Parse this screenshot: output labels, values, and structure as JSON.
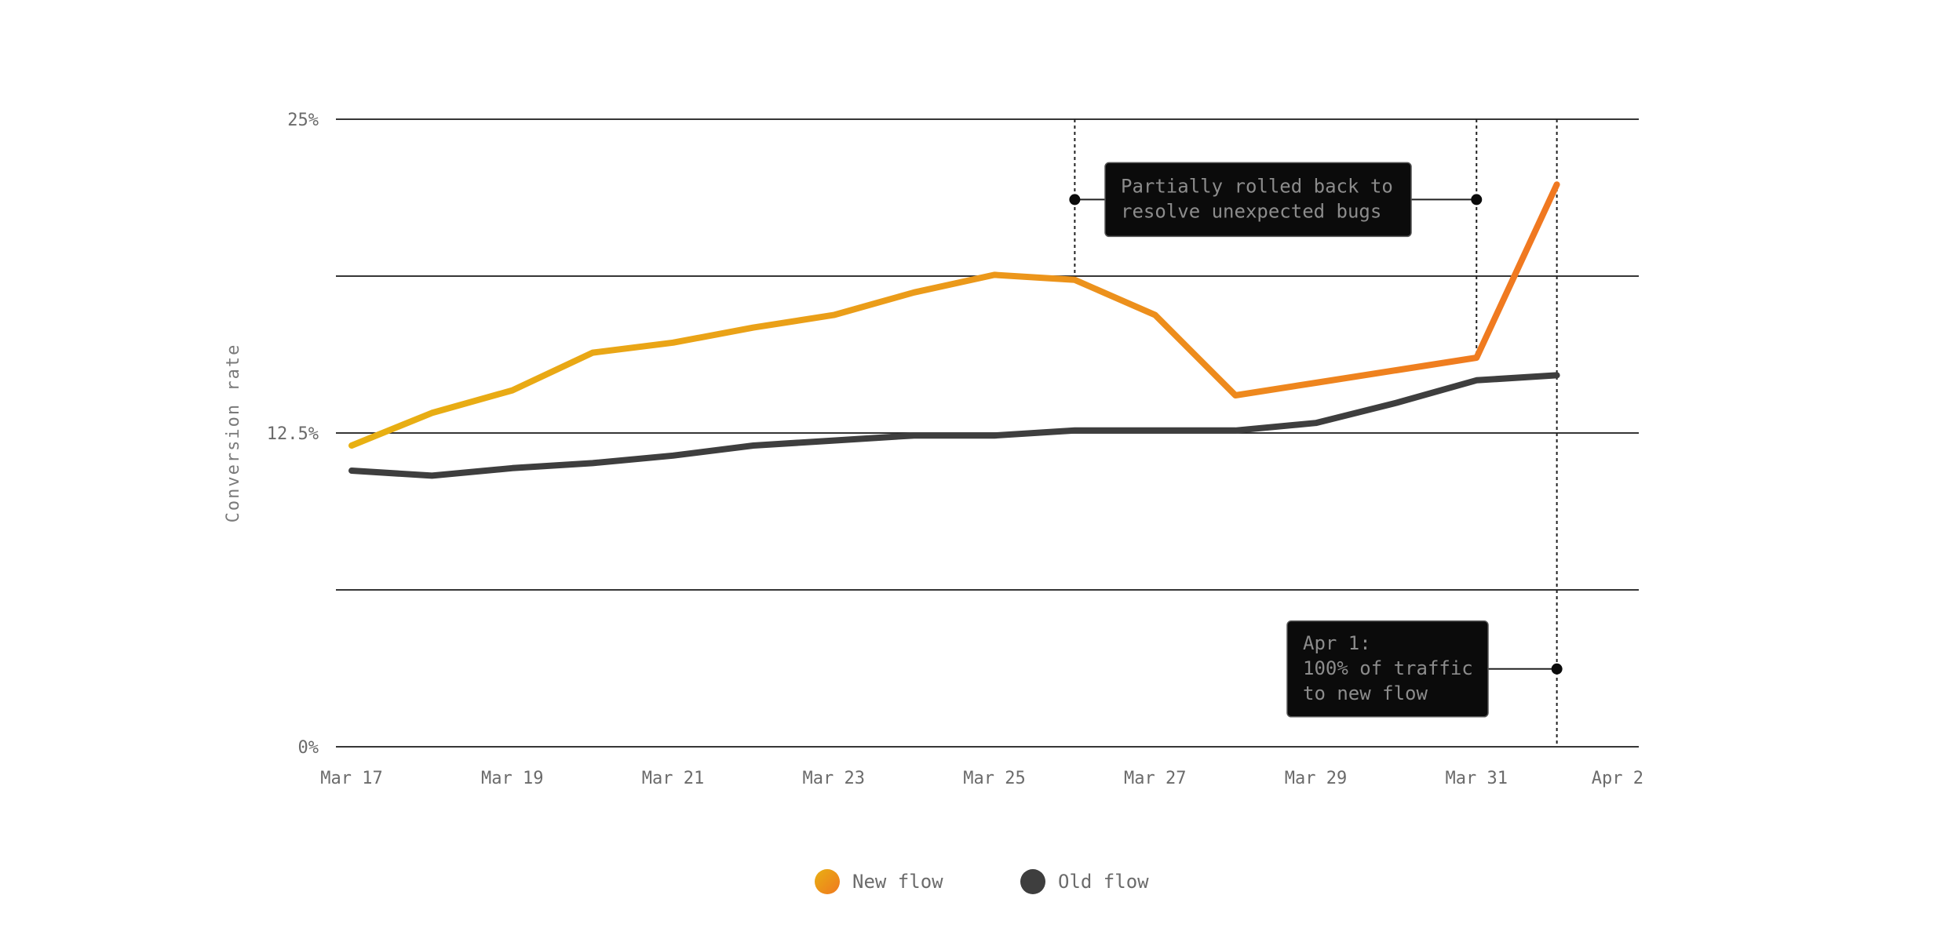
{
  "chart_data": {
    "type": "line",
    "ylabel": "Conversion rate",
    "xlabel": "",
    "ylim": [
      0,
      25
    ],
    "y_ticks": [
      {
        "value": 0,
        "label": "0%"
      },
      {
        "value": 6.25,
        "label": ""
      },
      {
        "value": 12.5,
        "label": "12.5%"
      },
      {
        "value": 18.75,
        "label": ""
      },
      {
        "value": 25,
        "label": "25%"
      }
    ],
    "x_ticks": [
      "Mar 17",
      "Mar 19",
      "Mar 21",
      "Mar 23",
      "Mar 25",
      "Mar 27",
      "Mar 29",
      "Mar 31",
      "Apr 2"
    ],
    "x_tick_index": [
      0,
      2,
      4,
      6,
      8,
      10,
      12,
      14,
      16
    ],
    "x_domain": [
      0,
      16
    ],
    "categories": [
      "Mar 17",
      "Mar 18",
      "Mar 19",
      "Mar 20",
      "Mar 21",
      "Mar 22",
      "Mar 23",
      "Mar 24",
      "Mar 25",
      "Mar 26",
      "Mar 27",
      "Mar 28",
      "Mar 29",
      "Mar 30",
      "Mar 31",
      "Apr 1"
    ],
    "series": [
      {
        "name": "New flow",
        "color_start": "#e8b012",
        "color_end": "#f07820",
        "values": [
          12.0,
          13.3,
          14.2,
          15.7,
          16.1,
          16.7,
          17.2,
          18.1,
          18.8,
          18.6,
          17.2,
          14.0,
          14.5,
          15.0,
          15.5,
          22.4
        ]
      },
      {
        "name": "Old flow",
        "color": "#3e3e3e",
        "values": [
          11.0,
          10.8,
          11.1,
          11.3,
          11.6,
          12.0,
          12.2,
          12.4,
          12.4,
          12.6,
          12.6,
          12.6,
          12.9,
          13.7,
          14.6,
          14.8
        ]
      }
    ],
    "annotations": [
      {
        "id": "rollback",
        "from_index": 9,
        "to_index": 14,
        "y_value": 21.8,
        "lines": [
          "Partially rolled back to",
          "resolve unexpected bugs"
        ]
      },
      {
        "id": "apr1",
        "at_index": 15,
        "y_value": 3.1,
        "lines": [
          "Apr 1:",
          "100% of traffic",
          "to new flow"
        ]
      }
    ],
    "legend": [
      {
        "label": "New flow",
        "swatch": "gradient"
      },
      {
        "label": "Old flow",
        "swatch": "#3e3e3e"
      }
    ],
    "legend_position": "bottom-center"
  }
}
